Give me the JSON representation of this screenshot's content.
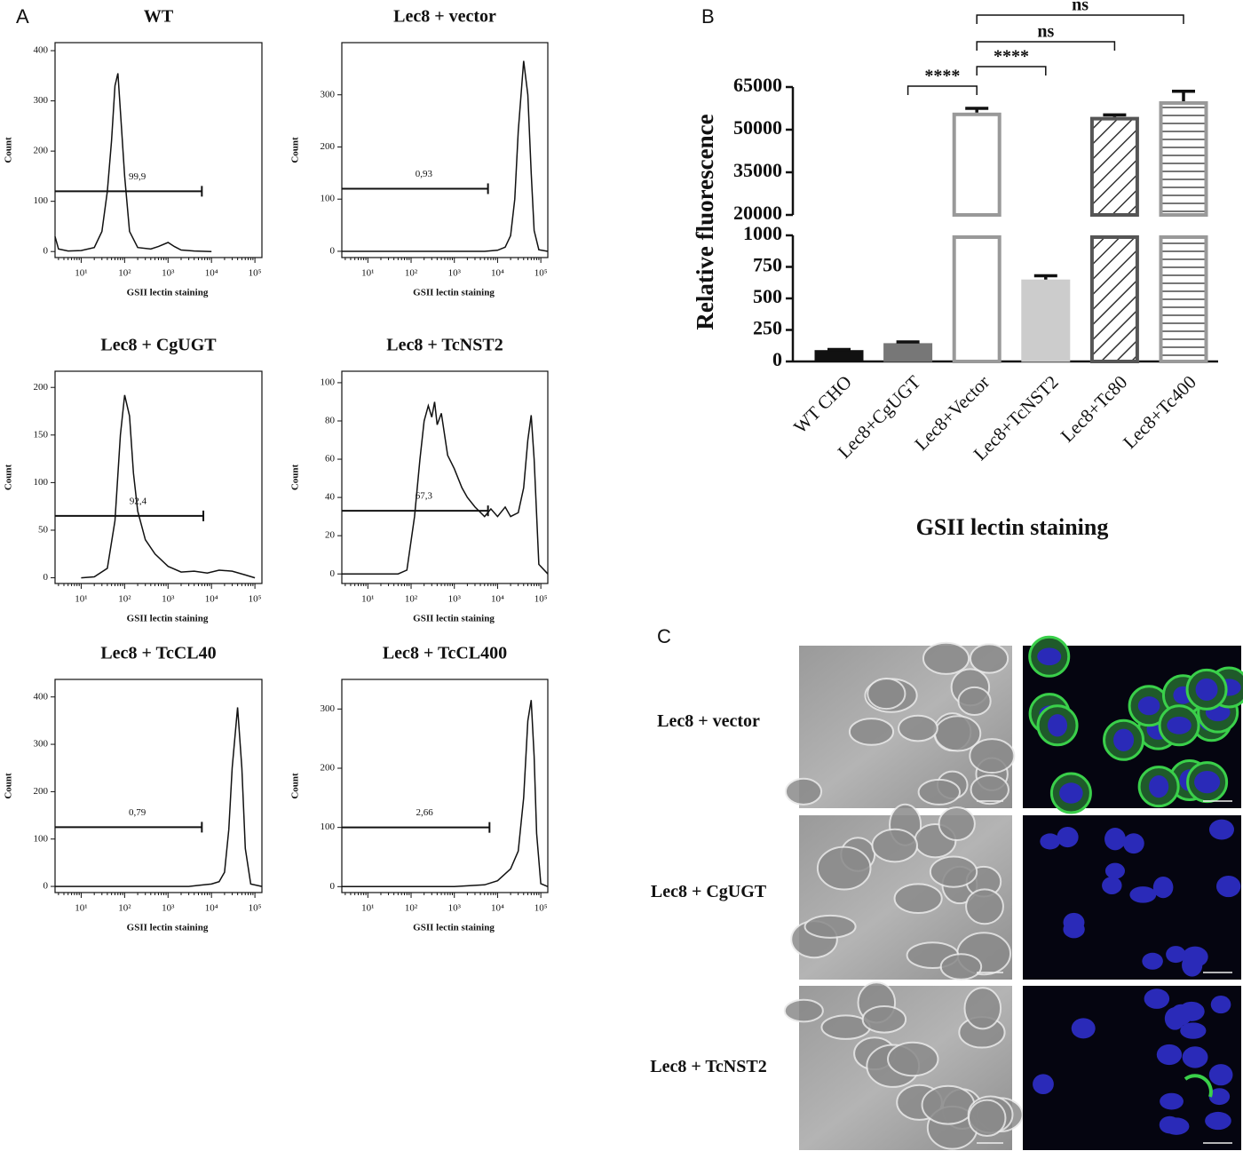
{
  "panel_labels": [
    "A",
    "B",
    "C"
  ],
  "chart_data": [
    {
      "type": "line",
      "title": "WT",
      "xlabel": "GSII lectin staining",
      "ylabel": "Count",
      "log_x": true,
      "xlim": [
        2.5,
        145000
      ],
      "ylim": [
        -12,
        416
      ],
      "xticks": [
        {
          "value": 10,
          "label": "10¹"
        },
        {
          "value": 100,
          "label": "10²"
        },
        {
          "value": 1000,
          "label": "10³"
        },
        {
          "value": 10000,
          "label": "10⁴"
        },
        {
          "value": 100000,
          "label": "10⁵"
        }
      ],
      "yticks": [
        0,
        100,
        200,
        300,
        400
      ],
      "x": [
        2.5,
        3,
        5,
        10,
        20,
        30,
        40,
        50,
        60,
        70,
        80,
        100,
        130,
        200,
        400,
        600,
        1000,
        1400,
        2000,
        4000,
        10000
      ],
      "y": [
        30,
        5,
        1,
        2,
        8,
        40,
        120,
        220,
        330,
        355,
        280,
        150,
        40,
        8,
        5,
        10,
        18,
        10,
        3,
        1,
        0
      ],
      "gate_x": [
        2.5,
        6000
      ],
      "gate_y": 120,
      "gate_label": "99,9"
    },
    {
      "type": "line",
      "title": "Lec8 + vector",
      "xlabel": "GSII lectin staining",
      "ylabel": "Count",
      "log_x": true,
      "xlim": [
        2.5,
        145000
      ],
      "ylim": [
        -12,
        400
      ],
      "xticks": [
        {
          "value": 10,
          "label": "10¹"
        },
        {
          "value": 100,
          "label": "10²"
        },
        {
          "value": 1000,
          "label": "10³"
        },
        {
          "value": 10000,
          "label": "10⁴"
        },
        {
          "value": 100000,
          "label": "10⁵"
        }
      ],
      "yticks": [
        0,
        100,
        200,
        300
      ],
      "x": [
        2.5,
        100,
        1000,
        5000,
        10000,
        15000,
        20000,
        25000,
        30000,
        40000,
        50000,
        60000,
        70000,
        90000,
        145000
      ],
      "y": [
        0,
        0,
        0,
        0,
        2,
        8,
        30,
        100,
        230,
        365,
        300,
        150,
        40,
        3,
        0
      ],
      "gate_x": [
        2.5,
        6000
      ],
      "gate_y": 120,
      "gate_label": "0,93"
    },
    {
      "type": "line",
      "title": "Lec8 + CgUGT",
      "xlabel": "GSII lectin staining",
      "ylabel": "Count",
      "log_x": true,
      "xlim": [
        2.5,
        145000
      ],
      "ylim": [
        -6,
        217
      ],
      "xticks": [
        {
          "value": 10,
          "label": "10¹"
        },
        {
          "value": 100,
          "label": "10²"
        },
        {
          "value": 1000,
          "label": "10³"
        },
        {
          "value": 10000,
          "label": "10⁴"
        },
        {
          "value": 100000,
          "label": "10⁵"
        }
      ],
      "yticks": [
        0,
        50,
        100,
        150,
        200
      ],
      "x": [
        10,
        20,
        40,
        60,
        80,
        100,
        130,
        160,
        200,
        300,
        500,
        1000,
        2000,
        4000,
        8000,
        15000,
        30000,
        60000,
        100000
      ],
      "y": [
        0,
        1,
        10,
        60,
        150,
        192,
        170,
        110,
        70,
        40,
        25,
        12,
        6,
        7,
        5,
        8,
        7,
        3,
        0
      ],
      "gate_x": [
        2.5,
        6500
      ],
      "gate_y": 65,
      "gate_label": "92,4"
    },
    {
      "type": "line",
      "title": "Lec8 + TcNST2",
      "xlabel": "GSII lectin staining",
      "ylabel": "Count",
      "log_x": true,
      "xlim": [
        2.5,
        145000
      ],
      "ylim": [
        -5,
        106
      ],
      "xticks": [
        {
          "value": 10,
          "label": "10¹"
        },
        {
          "value": 100,
          "label": "10²"
        },
        {
          "value": 1000,
          "label": "10³"
        },
        {
          "value": 10000,
          "label": "10⁴"
        },
        {
          "value": 100000,
          "label": "10⁵"
        }
      ],
      "yticks": [
        0,
        20,
        40,
        60,
        80,
        100
      ],
      "x": [
        2.5,
        50,
        80,
        120,
        160,
        200,
        250,
        300,
        350,
        400,
        500,
        700,
        1000,
        1500,
        2000,
        3000,
        5000,
        7000,
        10000,
        15000,
        20000,
        30000,
        40000,
        50000,
        60000,
        70000,
        90000,
        145000
      ],
      "y": [
        0,
        0,
        2,
        30,
        60,
        80,
        88,
        82,
        90,
        78,
        84,
        62,
        55,
        45,
        40,
        35,
        30,
        34,
        30,
        35,
        30,
        32,
        45,
        70,
        83,
        60,
        5,
        0
      ],
      "gate_x": [
        2.5,
        6000
      ],
      "gate_y": 33,
      "gate_label": "67,3"
    },
    {
      "type": "line",
      "title": "Lec8 + TcCL40",
      "xlabel": "GSII lectin staining",
      "ylabel": "Count",
      "log_x": true,
      "xlim": [
        2.5,
        145000
      ],
      "ylim": [
        -13,
        437
      ],
      "xticks": [
        {
          "value": 10,
          "label": "10¹"
        },
        {
          "value": 100,
          "label": "10²"
        },
        {
          "value": 1000,
          "label": "10³"
        },
        {
          "value": 10000,
          "label": "10⁴"
        },
        {
          "value": 100000,
          "label": "10⁵"
        }
      ],
      "yticks": [
        0,
        100,
        200,
        300,
        400
      ],
      "x": [
        2.5,
        1000,
        3000,
        6000,
        10000,
        15000,
        20000,
        25000,
        30000,
        40000,
        50000,
        60000,
        80000,
        145000
      ],
      "y": [
        0,
        0,
        0,
        3,
        5,
        10,
        30,
        120,
        250,
        378,
        250,
        80,
        5,
        0
      ],
      "gate_x": [
        2.5,
        6000
      ],
      "gate_y": 125,
      "gate_label": "0,79"
    },
    {
      "type": "line",
      "title": "Lec8 + TcCL400",
      "xlabel": "GSII lectin staining",
      "ylabel": "Count",
      "log_x": true,
      "xlim": [
        2.5,
        145000
      ],
      "ylim": [
        -10,
        350
      ],
      "xticks": [
        {
          "value": 10,
          "label": "10¹"
        },
        {
          "value": 100,
          "label": "10²"
        },
        {
          "value": 1000,
          "label": "10³"
        },
        {
          "value": 10000,
          "label": "10⁴"
        },
        {
          "value": 100000,
          "label": "10⁵"
        }
      ],
      "yticks": [
        0,
        100,
        200,
        300
      ],
      "x": [
        2.5,
        1000,
        5000,
        10000,
        20000,
        30000,
        40000,
        50000,
        60000,
        70000,
        80000,
        100000,
        145000
      ],
      "y": [
        0,
        0,
        3,
        10,
        30,
        60,
        150,
        280,
        315,
        220,
        90,
        5,
        0
      ],
      "gate_x": [
        2.5,
        6500
      ],
      "gate_y": 100,
      "gate_label": "2,66"
    },
    {
      "type": "bar",
      "ylabel": "Relative fluorescence",
      "xlabel": "GSII lectin staining",
      "categories": [
        "WT CHO",
        "Lec8+CgUGT",
        "Lec8+Vector",
        "Lec8+TcNST2",
        "Lec8+Tc80",
        "Lec8+Tc400"
      ],
      "values": [
        90,
        145,
        56000,
        650,
        54500,
        60000
      ],
      "errors": [
        5,
        10,
        1500,
        30,
        700,
        3500
      ],
      "colors": [
        "#111111",
        "#777777",
        "#ffffff",
        "#cccccc",
        "#ffffff",
        "#ffffff"
      ],
      "edgecolors": [
        "#111111",
        "#777777",
        "#999999",
        "#cccccc",
        "#555555",
        "#999999"
      ],
      "hatches": [
        null,
        null,
        null,
        null,
        "diagonal",
        "horizontal"
      ],
      "segments": [
        {
          "ylim": [
            0,
            1000
          ],
          "yticks": [
            0,
            250,
            500,
            750,
            1000
          ]
        },
        {
          "ylim": [
            20000,
            65000
          ],
          "yticks": [
            20000,
            35000,
            50000,
            65000
          ]
        }
      ],
      "significance": [
        {
          "from": "Lec8+CgUGT",
          "to": "Lec8+Vector",
          "label": "****"
        },
        {
          "from": "Lec8+Vector",
          "to": "Lec8+TcNST2",
          "label": "****"
        },
        {
          "from": "Lec8+Vector",
          "to": "Lec8+Tc80",
          "label": "ns"
        },
        {
          "from": "Lec8+Vector",
          "to": "Lec8+Tc400",
          "label": "ns"
        }
      ]
    }
  ],
  "micrographs": {
    "rows": [
      "Lec8 + vector",
      "Lec8 + CgUGT",
      "Lec8 + TcNST2"
    ]
  }
}
